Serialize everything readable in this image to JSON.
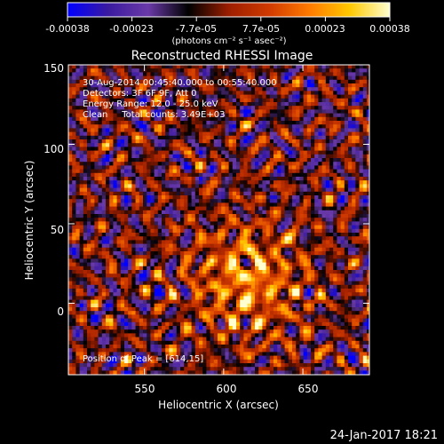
{
  "chart_data": {
    "type": "heatmap",
    "title": "Reconstructed RHESSI Image",
    "xlabel": "Heliocentric X (arcsec)",
    "ylabel": "Heliocentric Y (arcsec)",
    "xlim": [
      502,
      692
    ],
    "ylim": [
      -45,
      150
    ],
    "xticks": [
      550,
      600,
      650
    ],
    "yticks": [
      0,
      50,
      100,
      150
    ],
    "grid": false,
    "colorbar": {
      "range": [
        -0.00038,
        0.00038
      ],
      "tick_labels": [
        "-0.00038",
        "-0.00023",
        "-7.7e-05",
        "7.7e-05",
        "0.00023",
        "0.00038"
      ],
      "unit_label": "(photons cm⁻² s⁻¹ asec⁻²)",
      "colormap": [
        "#0000ff",
        "#3a1aa0",
        "#6a3aa8",
        "#000000",
        "#9c1e00",
        "#d03a00",
        "#ff7a00",
        "#ffc800",
        "#ffffd0"
      ]
    },
    "peak": {
      "x": 614,
      "y": 15
    }
  },
  "annotations": {
    "time_range": "30-Aug-2014 00:45:40.000 to 00:55:40.000",
    "detectors": "Detectors: 3F 6F 9F, Att 0",
    "energy_range": "Energy Range: 12.0 - 25.0 keV",
    "method_counts": "Clean     Total counts: 3.49E+03",
    "peak_position": "Position of Peak = [614,15]"
  },
  "footer": {
    "date_stamp": "24-Jan-2017 18:21"
  }
}
